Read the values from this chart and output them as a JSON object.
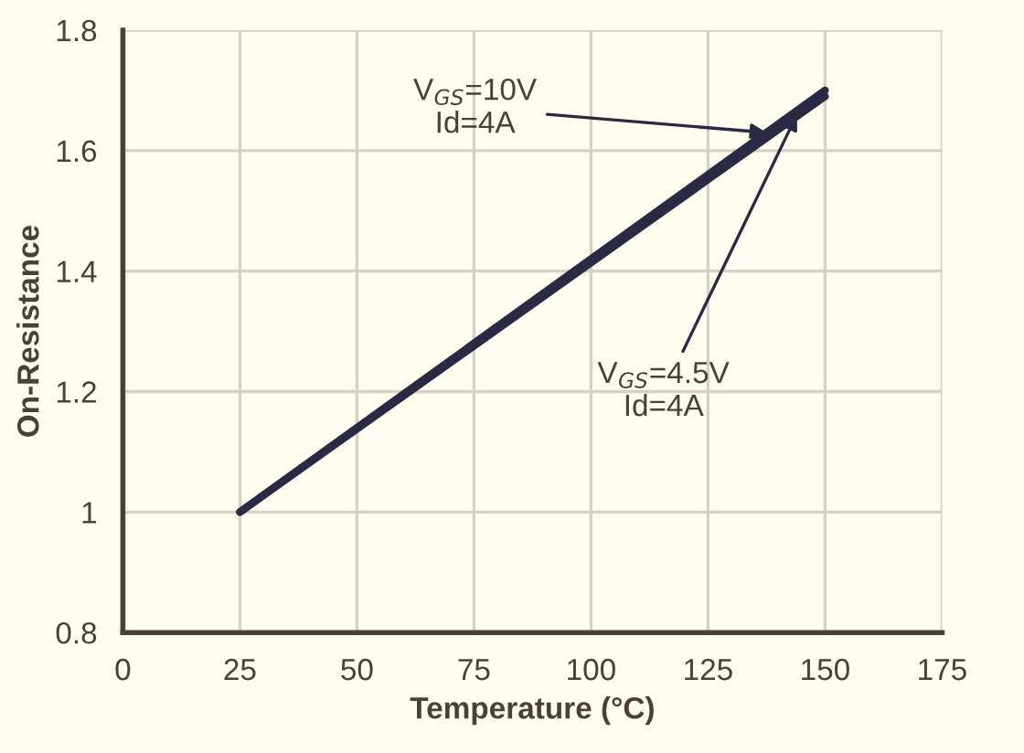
{
  "chart_data": {
    "type": "line",
    "xlabel": "Temperature (°C)",
    "ylabel": "On-Resistance",
    "x": [
      25,
      150
    ],
    "series": [
      {
        "color": "#2a2a44",
        "values": [
          1.0,
          1.7
        ]
      },
      {
        "color": "#2a2a44",
        "values": [
          1.0,
          1.69
        ]
      }
    ],
    "annotations": [
      {
        "text": "V$_{GS}$=10V\nId=4A",
        "x": 137.5,
        "y": 1.63
      },
      {
        "text": "V$_{GS}$=4.5V\nId=4A",
        "x": 144,
        "y": 1.66
      }
    ],
    "xlim": [
      0,
      175
    ],
    "ylim": [
      0.8,
      1.8
    ],
    "xticks": [
      0,
      25,
      50,
      75,
      100,
      125,
      150,
      175
    ],
    "yticks": [
      0.8,
      1,
      1.2,
      1.4,
      1.6,
      1.8
    ],
    "grid": true,
    "legend": false,
    "marker": "none",
    "line_style": "solid"
  }
}
